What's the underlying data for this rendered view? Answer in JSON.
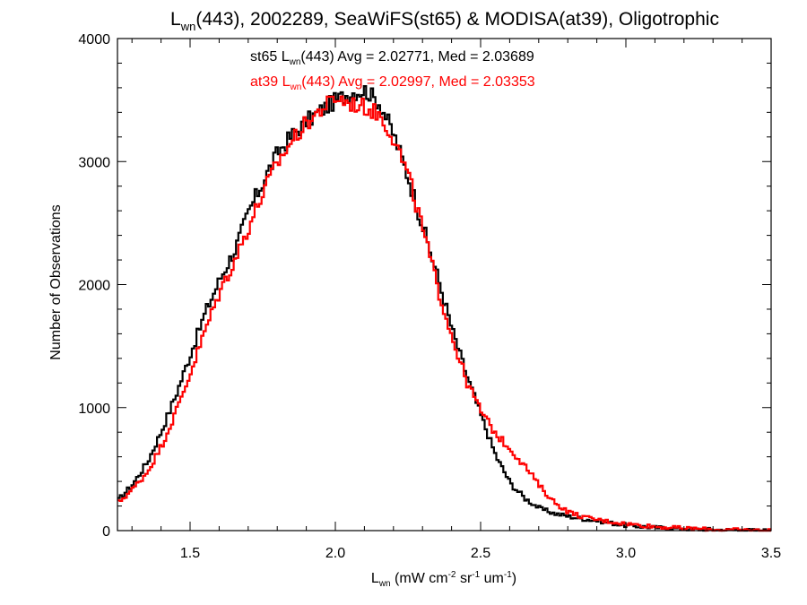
{
  "chart_data": {
    "type": "line",
    "title": {
      "pre": "L",
      "sub": "wn",
      "post": "(443), 2002289, SeaWiFS(st65) & MODISA(at39), Oligotrophic"
    },
    "xlabel": {
      "pre": "L",
      "sub": "wn",
      "p1": " (mW cm",
      "sup1": "-2",
      "p2": " sr",
      "sup2": "-1",
      "p3": " um",
      "sup3": "-1",
      "p4": ")"
    },
    "ylabel": "Number of Observations",
    "xlim": [
      1.25,
      3.5
    ],
    "ylim": [
      0,
      4000
    ],
    "xticks": [
      1.5,
      2.0,
      2.5,
      3.0,
      3.5
    ],
    "xtick_labels": [
      "1.5",
      "2.0",
      "2.5",
      "3.0",
      "3.5"
    ],
    "yticks": [
      0,
      1000,
      2000,
      3000,
      4000
    ],
    "ytick_labels": [
      "0",
      "1000",
      "2000",
      "3000",
      "4000"
    ],
    "grid": false,
    "step": true,
    "series": [
      {
        "name": "st65",
        "color": "#000000",
        "x": [
          1.25,
          1.3,
          1.35,
          1.4,
          1.45,
          1.5,
          1.55,
          1.6,
          1.65,
          1.7,
          1.75,
          1.8,
          1.85,
          1.9,
          1.95,
          2.0,
          2.05,
          2.1,
          2.15,
          2.2,
          2.25,
          2.3,
          2.35,
          2.4,
          2.45,
          2.5,
          2.55,
          2.6,
          2.65,
          2.7,
          2.75,
          2.8,
          2.85,
          2.9,
          2.95,
          3.0,
          3.1,
          3.2,
          3.3,
          3.4,
          3.5
        ],
        "y": [
          250,
          380,
          560,
          820,
          1120,
          1450,
          1780,
          2050,
          2280,
          2600,
          2850,
          3080,
          3220,
          3330,
          3420,
          3500,
          3560,
          3580,
          3470,
          3200,
          2850,
          2450,
          2050,
          1620,
          1250,
          920,
          600,
          380,
          260,
          180,
          140,
          115,
          95,
          80,
          60,
          40,
          25,
          15,
          8,
          3,
          0
        ]
      },
      {
        "name": "at39",
        "color": "#ff0000",
        "x": [
          1.25,
          1.3,
          1.35,
          1.4,
          1.45,
          1.5,
          1.55,
          1.6,
          1.65,
          1.7,
          1.75,
          1.8,
          1.85,
          1.9,
          1.95,
          2.0,
          2.05,
          2.1,
          2.15,
          2.2,
          2.25,
          2.3,
          2.35,
          2.4,
          2.45,
          2.5,
          2.55,
          2.6,
          2.65,
          2.7,
          2.75,
          2.8,
          2.85,
          2.9,
          2.95,
          3.0,
          3.1,
          3.2,
          3.3,
          3.4,
          3.5
        ],
        "y": [
          230,
          340,
          480,
          700,
          980,
          1300,
          1640,
          1950,
          2200,
          2480,
          2760,
          3000,
          3180,
          3320,
          3430,
          3520,
          3470,
          3440,
          3380,
          3180,
          2860,
          2420,
          1960,
          1560,
          1200,
          960,
          780,
          660,
          520,
          360,
          230,
          150,
          110,
          88,
          70,
          55,
          32,
          18,
          9,
          4,
          0
        ]
      }
    ],
    "annotations": [
      {
        "series": "st65",
        "color": "#000000",
        "pre": "st65 L",
        "sub": "wn",
        "post": "(443) Avg = 2.02771, Med = 2.03689"
      },
      {
        "series": "at39",
        "color": "#ff0000",
        "pre": "at39 L",
        "sub": "wn",
        "post": "(443) Avg = 2.02997, Med = 2.03353"
      }
    ]
  }
}
